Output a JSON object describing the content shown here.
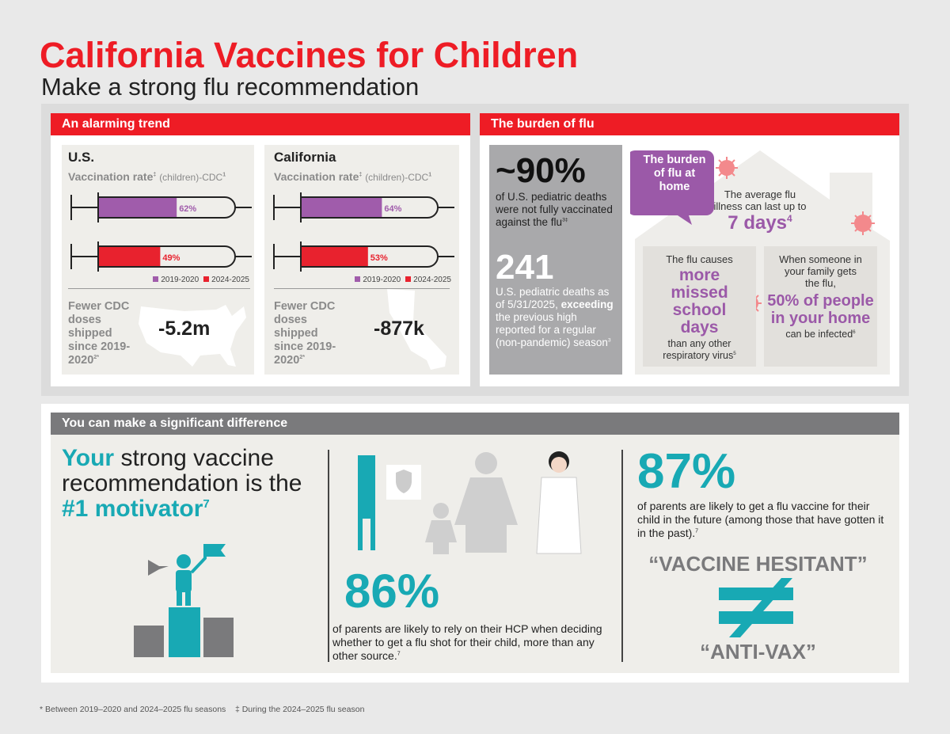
{
  "header": {
    "title": "California Vaccines for Children",
    "subtitle": "Make a strong flu recommendation"
  },
  "trend": {
    "heading": "An alarming trend",
    "colors": [
      "#a05cab",
      "#e8222e"
    ],
    "legend": [
      "2019-2020",
      "2024-2025"
    ],
    "panels": [
      {
        "region": "U.S.",
        "metric_label": "Vaccination rate",
        "metric_mark": "‡",
        "metric_source": "(children)-CDC",
        "metric_ref": "1",
        "bars": [
          {
            "value": 62,
            "label": "62%"
          },
          {
            "value": 49,
            "label": "49%"
          }
        ],
        "doses_text": "Fewer CDC doses shipped since 2019-2020",
        "doses_ref": "2*",
        "doses_value": "-5.2m"
      },
      {
        "region": "California",
        "metric_label": "Vaccination rate",
        "metric_mark": "‡",
        "metric_source": "(children)-CDC",
        "metric_ref": "1",
        "bars": [
          {
            "value": 64,
            "label": "64%"
          },
          {
            "value": 53,
            "label": "53%"
          }
        ],
        "doses_text": "Fewer CDC doses shipped since 2019-2020",
        "doses_ref": "2*",
        "doses_value": "-877k"
      }
    ]
  },
  "burden": {
    "heading": "The burden of flu",
    "stat1": {
      "value": "~90%",
      "text": "of U.S. pediatric deaths were not fully vaccinated against the flu",
      "ref": "3‡"
    },
    "stat2": {
      "value": "241",
      "text_before": "U.S. pediatric deaths as of 5/31/2025,",
      "emphasis": "exceeding",
      "text_after": "the previous high reported for a regular (non-pandemic) season",
      "ref": "3"
    },
    "bubble": "The burden of flu at home",
    "duration": {
      "text": "The average flu illness can last up to",
      "value": "7 days",
      "ref": "4"
    },
    "school": {
      "intro": "The flu causes",
      "highlight": "more missed school days",
      "outro": "than any other respiratory virus",
      "ref": "5"
    },
    "family": {
      "intro": "When someone in your family gets the flu,",
      "highlight": "50% of people in your home",
      "outro": "can be infected",
      "ref": "6"
    }
  },
  "difference": {
    "heading": "You can make a significant difference",
    "motivator": {
      "lead": "Your",
      "middle": "strong vaccine recommendation is the",
      "highlight": "#1 motivator",
      "ref": "7"
    },
    "stat86": {
      "value": "86%",
      "text": "of parents are likely to rely on their HCP when deciding whether to get a flu shot for their child, more than any other source.",
      "ref": "7"
    },
    "stat87": {
      "value": "87%",
      "text": "of parents are likely to get a flu vaccine for their child in the future (among those that have gotten it in the past).",
      "ref": "7"
    },
    "hesitant": "“VACCINE HESITANT”",
    "antivax": "“ANTI-VAX”"
  },
  "footnotes": [
    "* Between 2019–2020 and 2024–2025 flu seasons",
    "‡ During the 2024–2025 flu season"
  ]
}
